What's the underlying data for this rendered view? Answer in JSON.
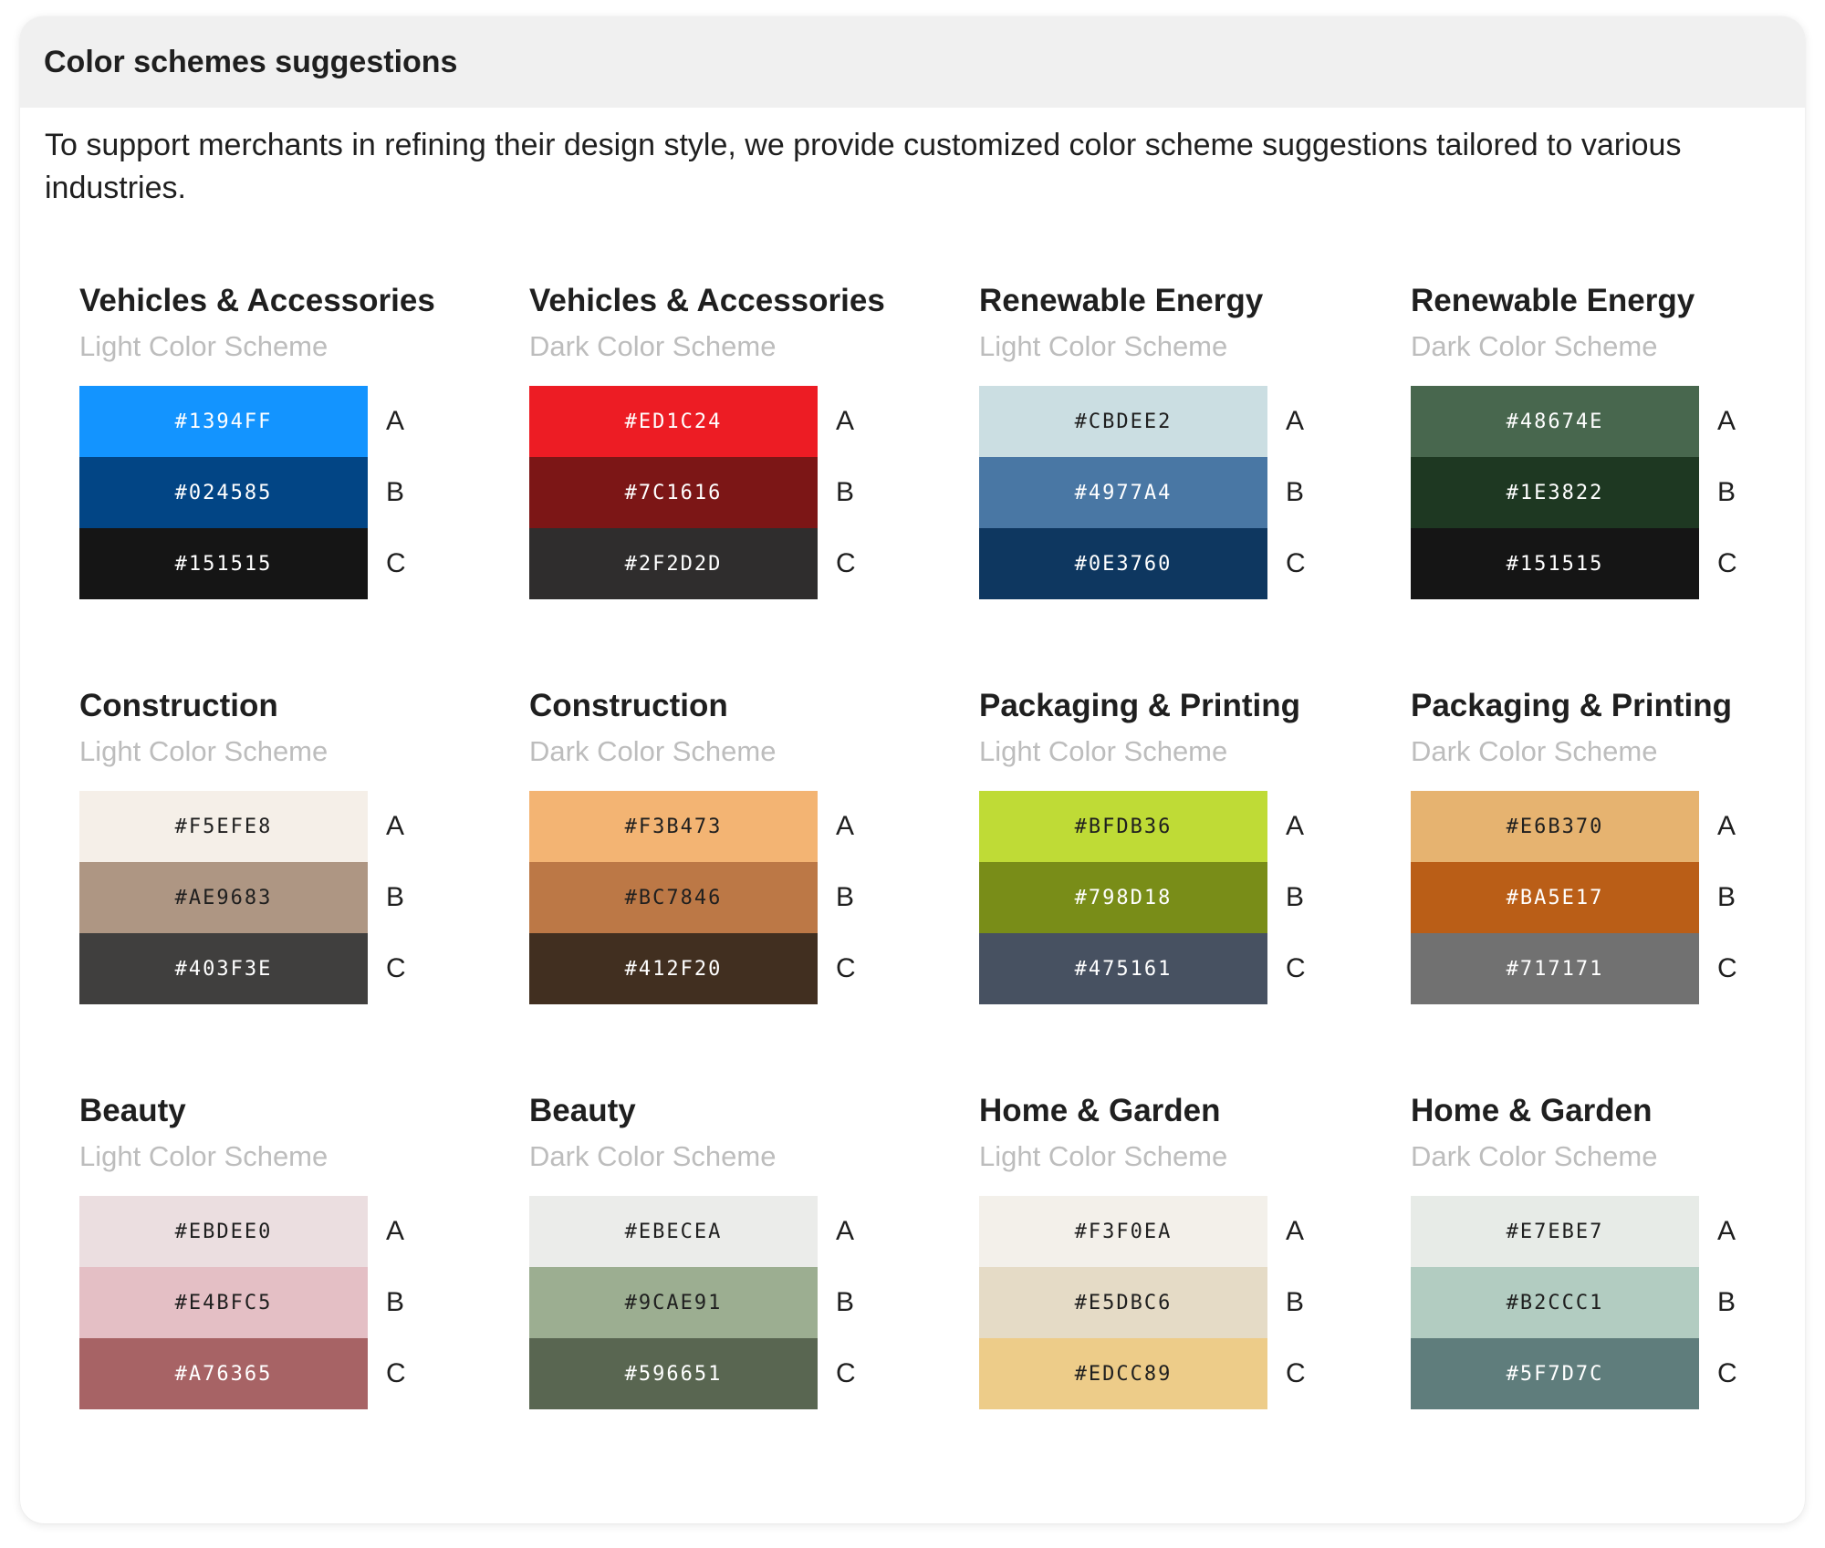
{
  "header": {
    "title": "Color schemes suggestions"
  },
  "intro": "To support merchants in refining their design style, we provide customized color scheme suggestions tailored to various industries.",
  "schemes": [
    {
      "title": "Vehicles & Accessories",
      "subtitle": "Light Color Scheme",
      "colors": [
        {
          "hex": "#1394FF",
          "label": "A",
          "text_color": "#ffffff"
        },
        {
          "hex": "#024585",
          "label": "B",
          "text_color": "#ffffff"
        },
        {
          "hex": "#151515",
          "label": "C",
          "text_color": "#ffffff"
        }
      ]
    },
    {
      "title": "Vehicles & Accessories",
      "subtitle": "Dark Color Scheme",
      "colors": [
        {
          "hex": "#ED1C24",
          "label": "A",
          "text_color": "#ffffff"
        },
        {
          "hex": "#7C1616",
          "label": "B",
          "text_color": "#ffffff"
        },
        {
          "hex": "#2F2D2D",
          "label": "C",
          "text_color": "#ffffff"
        }
      ]
    },
    {
      "title": "Renewable Energy",
      "subtitle": "Light Color Scheme",
      "colors": [
        {
          "hex": "#CBDEE2",
          "label": "A",
          "text_color": "#1f1f1f"
        },
        {
          "hex": "#4977A4",
          "label": "B",
          "text_color": "#ffffff"
        },
        {
          "hex": "#0E3760",
          "label": "C",
          "text_color": "#ffffff"
        }
      ]
    },
    {
      "title": "Renewable Energy",
      "subtitle": "Dark Color Scheme",
      "colors": [
        {
          "hex": "#48674E",
          "label": "A",
          "text_color": "#ffffff"
        },
        {
          "hex": "#1E3822",
          "label": "B",
          "text_color": "#ffffff"
        },
        {
          "hex": "#151515",
          "label": "C",
          "text_color": "#ffffff"
        }
      ]
    },
    {
      "title": "Construction",
      "subtitle": "Light Color Scheme",
      "colors": [
        {
          "hex": "#F5EFE8",
          "label": "A",
          "text_color": "#1f1f1f"
        },
        {
          "hex": "#AE9683",
          "label": "B",
          "text_color": "#1f1f1f"
        },
        {
          "hex": "#403F3E",
          "label": "C",
          "text_color": "#ffffff"
        }
      ]
    },
    {
      "title": "Construction",
      "subtitle": "Dark Color Scheme",
      "colors": [
        {
          "hex": "#F3B473",
          "label": "A",
          "text_color": "#1f1f1f"
        },
        {
          "hex": "#BC7846",
          "label": "B",
          "text_color": "#1f1f1f"
        },
        {
          "hex": "#412F20",
          "label": "C",
          "text_color": "#ffffff"
        }
      ]
    },
    {
      "title": "Packaging & Printing",
      "subtitle": "Light Color Scheme",
      "colors": [
        {
          "hex": "#BFDB36",
          "label": "A",
          "text_color": "#1f1f1f"
        },
        {
          "hex": "#798D18",
          "label": "B",
          "text_color": "#ffffff"
        },
        {
          "hex": "#475161",
          "label": "C",
          "text_color": "#ffffff"
        }
      ]
    },
    {
      "title": "Packaging & Printing",
      "subtitle": "Dark Color Scheme",
      "colors": [
        {
          "hex": "#E6B370",
          "label": "A",
          "text_color": "#1f1f1f"
        },
        {
          "hex": "#BA5E17",
          "label": "B",
          "text_color": "#ffffff"
        },
        {
          "hex": "#717171",
          "label": "C",
          "text_color": "#ffffff"
        }
      ]
    },
    {
      "title": "Beauty",
      "subtitle": "Light Color Scheme",
      "colors": [
        {
          "hex": "#EBDEE0",
          "label": "A",
          "text_color": "#1f1f1f"
        },
        {
          "hex": "#E4BFC5",
          "label": "B",
          "text_color": "#1f1f1f"
        },
        {
          "hex": "#A76365",
          "label": "C",
          "text_color": "#ffffff"
        }
      ]
    },
    {
      "title": "Beauty",
      "subtitle": "Dark Color Scheme",
      "colors": [
        {
          "hex": "#EBECEA",
          "label": "A",
          "text_color": "#1f1f1f"
        },
        {
          "hex": "#9CAE91",
          "label": "B",
          "text_color": "#1f1f1f"
        },
        {
          "hex": "#596651",
          "label": "C",
          "text_color": "#ffffff"
        }
      ]
    },
    {
      "title": "Home & Garden",
      "subtitle": "Light Color Scheme",
      "colors": [
        {
          "hex": "#F3F0EA",
          "label": "A",
          "text_color": "#1f1f1f"
        },
        {
          "hex": "#E5DBC6",
          "label": "B",
          "text_color": "#1f1f1f"
        },
        {
          "hex": "#EDCC89",
          "label": "C",
          "text_color": "#1f1f1f"
        }
      ]
    },
    {
      "title": "Home & Garden",
      "subtitle": "Dark Color Scheme",
      "colors": [
        {
          "hex": "#E7EBE7",
          "label": "A",
          "text_color": "#1f1f1f"
        },
        {
          "hex": "#B2CCC1",
          "label": "B",
          "text_color": "#1f1f1f"
        },
        {
          "hex": "#5F7D7C",
          "label": "C",
          "text_color": "#ffffff"
        }
      ]
    }
  ]
}
